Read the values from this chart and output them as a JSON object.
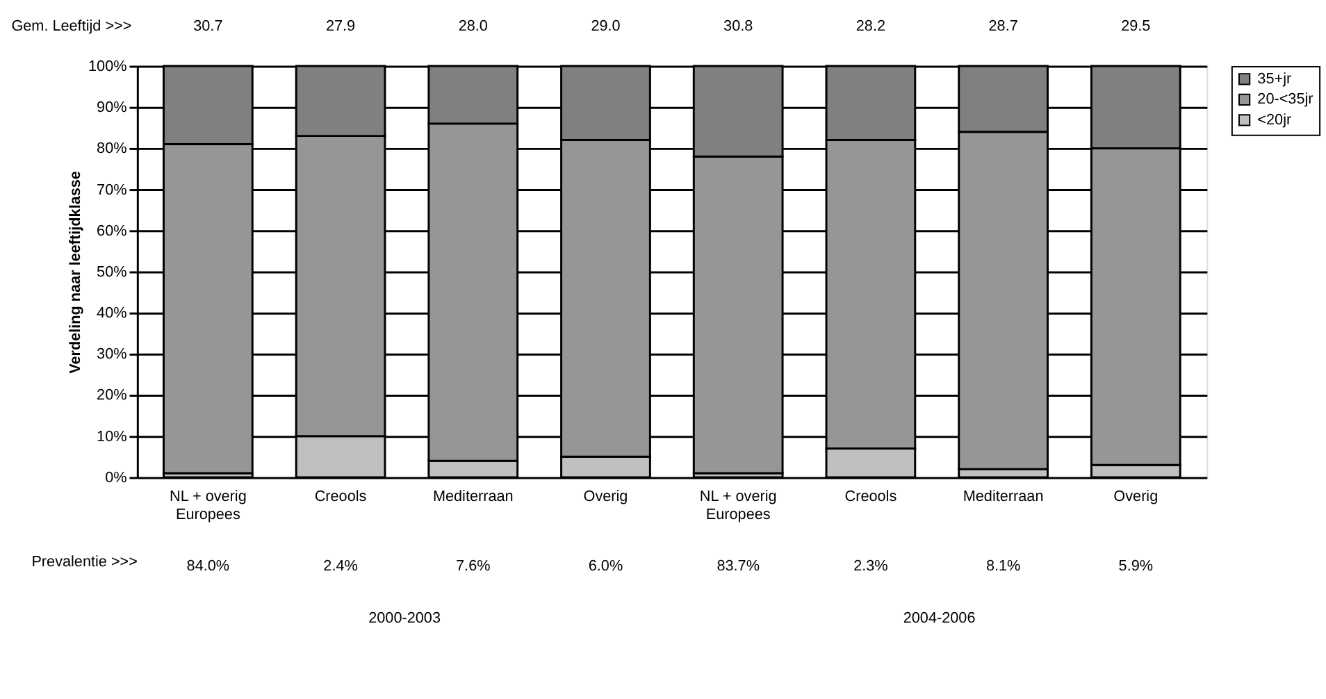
{
  "chart_data": {
    "type": "bar",
    "stacked": true,
    "categories": [
      "NL + overig\nEuropees",
      "Creools",
      "Mediterraan",
      "Overig",
      "NL + overig\nEuropees",
      "Creools",
      "Mediterraan",
      "Overig"
    ],
    "series": [
      {
        "name": "<20jr",
        "color": "#c0c0c0",
        "values": [
          1,
          10,
          4,
          5,
          1,
          7,
          2,
          3
        ]
      },
      {
        "name": "20-<35jr",
        "color": "#969696",
        "values": [
          80,
          73,
          82,
          77,
          77,
          75,
          82,
          77
        ]
      },
      {
        "name": "35+jr",
        "color": "#808080",
        "values": [
          19,
          17,
          14,
          18,
          22,
          18,
          16,
          20
        ]
      }
    ],
    "ylabel": "Verdeling naar leeftijdklasse",
    "ylim": [
      0,
      100
    ],
    "yticks": [
      {
        "value": 0,
        "label": "0%"
      },
      {
        "value": 10,
        "label": "10%"
      },
      {
        "value": 20,
        "label": "20%"
      },
      {
        "value": 30,
        "label": "30%"
      },
      {
        "value": 40,
        "label": "40%"
      },
      {
        "value": 50,
        "label": "50%"
      },
      {
        "value": 60,
        "label": "60%"
      },
      {
        "value": 70,
        "label": "70%"
      },
      {
        "value": 80,
        "label": "80%"
      },
      {
        "value": 90,
        "label": "90%"
      },
      {
        "value": 100,
        "label": "100%"
      }
    ],
    "grid": "y",
    "legend": "right",
    "annotations": [
      "Gem. Leeftijd >>>",
      "30.7",
      "27.9",
      "28.0",
      "29.0",
      "30.8",
      "28.2",
      "28.7",
      "29.5",
      "Prevalentie >>>",
      "84.0%",
      "2.4%",
      "7.6%",
      "6.0%",
      "83.7%",
      "2.3%",
      "8.1%",
      "5.9%",
      "2000-2003",
      "2004-2006"
    ]
  }
}
